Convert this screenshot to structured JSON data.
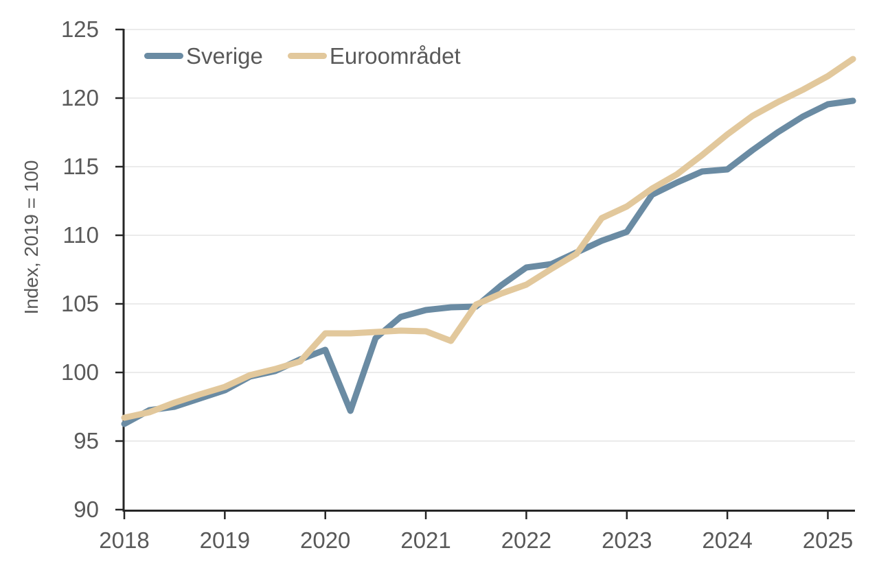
{
  "chart_data": {
    "type": "line",
    "ylabel": "Index, 2019 = 100",
    "ylim": [
      90,
      125
    ],
    "y_tick_step": 5,
    "y_ticks": [
      "90",
      "95",
      "100",
      "105",
      "110",
      "115",
      "120",
      "125"
    ],
    "xlim": [
      2018,
      2025.27
    ],
    "x_ticks": [
      "2018",
      "2019",
      "2020",
      "2021",
      "2022",
      "2023",
      "2024",
      "2025"
    ],
    "grid": "horizontal",
    "legend_position": "top-left",
    "x": [
      2018.0,
      2018.25,
      2018.5,
      2018.75,
      2019.0,
      2019.25,
      2019.5,
      2019.75,
      2020.0,
      2020.25,
      2020.5,
      2020.75,
      2021.0,
      2021.25,
      2021.5,
      2021.75,
      2022.0,
      2022.25,
      2022.5,
      2022.75,
      2023.0,
      2023.25,
      2023.5,
      2023.75,
      2024.0,
      2024.25,
      2024.5,
      2024.75,
      2025.0,
      2025.25
    ],
    "series": [
      {
        "name": "Sverige",
        "color": "#6A8BA3",
        "values": [
          96.25,
          97.25,
          97.5,
          98.1,
          98.7,
          99.7,
          100.1,
          100.95,
          101.65,
          97.2,
          102.5,
          104.05,
          104.55,
          104.75,
          104.8,
          106.35,
          107.65,
          107.9,
          108.75,
          109.6,
          110.25,
          112.95,
          113.85,
          114.65,
          114.8,
          116.2,
          117.5,
          118.65,
          119.55,
          119.8
        ]
      },
      {
        "name": "Euroområdet",
        "color": "#E2C89C",
        "values": [
          96.7,
          97.1,
          97.8,
          98.4,
          98.95,
          99.8,
          100.25,
          100.8,
          102.85,
          102.85,
          102.95,
          103.05,
          103.0,
          102.3,
          104.95,
          105.75,
          106.4,
          107.55,
          108.65,
          111.25,
          112.1,
          113.4,
          114.45,
          115.85,
          117.35,
          118.7,
          119.7,
          120.6,
          121.6,
          122.85
        ]
      }
    ],
    "axis_color": "#262626",
    "grid_color": "#ebebeb",
    "text_color": "#595959",
    "line_width": 9
  }
}
